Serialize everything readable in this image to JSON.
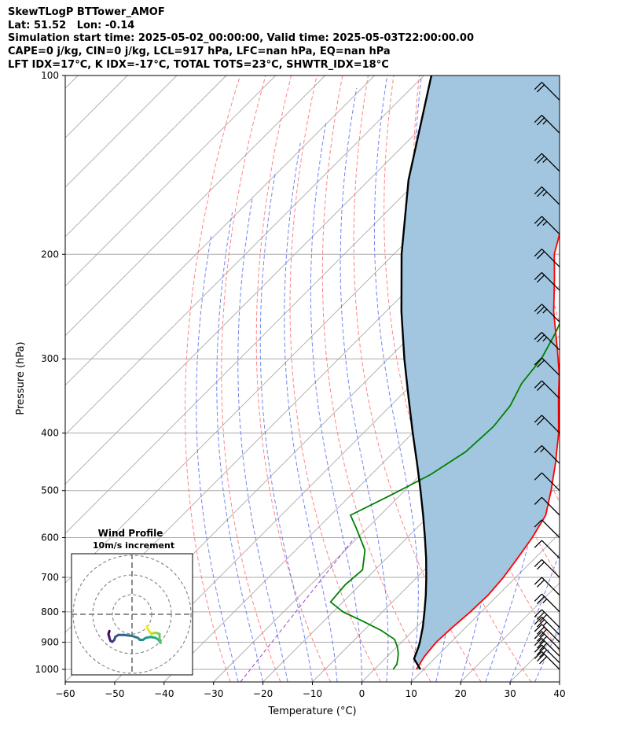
{
  "header": {
    "lines": [
      "SkewTLogP BTTower_AMOF",
      "Lat: 51.52   Lon: -0.14",
      "Simulation start time: 2025-05-02_00:00:00, Valid time: 2025-05-03T22:00:00.00",
      "CAPE=0 j/kg, CIN=0 j/kg, LCL=917 hPa, LFC=nan hPa, EQ=nan hPa",
      "LFT IDX=17°C, K IDX=-17°C, TOTAL TOTS=23°C, SHWTR_IDX=18°C"
    ]
  },
  "chart_data": {
    "type": "line",
    "xlabel": "Temperature (°C)",
    "ylabel": "Pressure (hPa)",
    "xlim": [
      -60,
      40
    ],
    "ylim": [
      1050,
      100
    ],
    "y_scale": "log",
    "skew": "45 degree skew-T",
    "x_ticks": [
      -60,
      -50,
      -40,
      -30,
      -20,
      -10,
      0,
      10,
      20,
      30,
      40
    ],
    "y_ticks": [
      1000,
      900,
      800,
      700,
      600,
      500,
      400,
      300,
      200,
      100
    ],
    "grid": true,
    "colors": {
      "temperature": "#ff0000",
      "dewpoint": "#008000",
      "parcel": "#000000",
      "cape_fill": "#a2c6e0",
      "dry_adiabats": "#ff6f6f",
      "moist_adiabats": "#5b6ff0",
      "mixing_ratio": "#9a44cc",
      "isotherms": "#aaaaaa"
    },
    "series": [
      {
        "role": "temperature",
        "points": [
          [
            1000,
            8.5
          ],
          [
            975,
            8.0
          ],
          [
            950,
            7.5
          ],
          [
            900,
            7.0
          ],
          [
            850,
            7.3
          ],
          [
            800,
            7.8
          ],
          [
            750,
            8.0
          ],
          [
            700,
            7.5
          ],
          [
            650,
            6.5
          ],
          [
            600,
            5.3
          ],
          [
            550,
            3.5
          ],
          [
            500,
            -0.4
          ],
          [
            450,
            -5.0
          ],
          [
            400,
            -10.5
          ],
          [
            350,
            -17.5
          ],
          [
            320,
            -22.0
          ],
          [
            290,
            -27.5
          ],
          [
            250,
            -36.0
          ],
          [
            220,
            -42.5
          ],
          [
            200,
            -47.5
          ],
          [
            185,
            -50.5
          ],
          [
            170,
            -51.5
          ],
          [
            150,
            -51.5
          ],
          [
            130,
            -51.8
          ],
          [
            115,
            -55.0
          ],
          [
            100,
            -58.5
          ]
        ]
      },
      {
        "role": "dewpoint",
        "points": [
          [
            1000,
            3.8
          ],
          [
            980,
            3.5
          ],
          [
            960,
            2.6
          ],
          [
            940,
            1.6
          ],
          [
            915,
            0.0
          ],
          [
            890,
            -2.0
          ],
          [
            860,
            -6.5
          ],
          [
            830,
            -12.0
          ],
          [
            800,
            -18.0
          ],
          [
            770,
            -22.5
          ],
          [
            720,
            -23.0
          ],
          [
            680,
            -22.5
          ],
          [
            630,
            -26.0
          ],
          [
            580,
            -32.0
          ],
          [
            550,
            -36.0
          ],
          [
            510,
            -32.0
          ],
          [
            470,
            -28.0
          ],
          [
            430,
            -25.5
          ],
          [
            390,
            -25.0
          ],
          [
            360,
            -25.8
          ],
          [
            330,
            -28.0
          ],
          [
            300,
            -29.0
          ],
          [
            270,
            -31.5
          ],
          [
            240,
            -35.0
          ],
          [
            200,
            -40.5
          ],
          [
            175,
            -43.5
          ],
          [
            150,
            -46.5
          ],
          [
            135,
            -53.0
          ],
          [
            120,
            -56.5
          ],
          [
            100,
            -65.0
          ]
        ]
      },
      {
        "role": "parcel",
        "points": [
          [
            1000,
            9.3
          ],
          [
            960,
            5.9
          ],
          [
            917,
            4.4
          ],
          [
            900,
            3.7
          ],
          [
            850,
            1.3
          ],
          [
            800,
            -1.5
          ],
          [
            750,
            -4.6
          ],
          [
            700,
            -8.1
          ],
          [
            650,
            -12.0
          ],
          [
            600,
            -16.4
          ],
          [
            550,
            -21.3
          ],
          [
            500,
            -26.8
          ],
          [
            450,
            -33.0
          ],
          [
            400,
            -40.0
          ],
          [
            350,
            -47.8
          ],
          [
            300,
            -56.7
          ],
          [
            250,
            -66.8
          ],
          [
            200,
            -78.4
          ],
          [
            150,
            -92.0
          ],
          [
            100,
            -108.5
          ]
        ]
      }
    ],
    "wind_barbs": {
      "units": "knots",
      "barbs": [
        [
          1000,
          30
        ],
        [
          975,
          30
        ],
        [
          950,
          30
        ],
        [
          925,
          30
        ],
        [
          900,
          30
        ],
        [
          875,
          25
        ],
        [
          850,
          30
        ],
        [
          800,
          25
        ],
        [
          750,
          20
        ],
        [
          700,
          20
        ],
        [
          650,
          10
        ],
        [
          600,
          10
        ],
        [
          550,
          10
        ],
        [
          500,
          10
        ],
        [
          450,
          15
        ],
        [
          400,
          20
        ],
        [
          350,
          20
        ],
        [
          320,
          20
        ],
        [
          290,
          25
        ],
        [
          260,
          25
        ],
        [
          230,
          20
        ],
        [
          210,
          20
        ],
        [
          185,
          25
        ],
        [
          165,
          25
        ],
        [
          145,
          25
        ],
        [
          125,
          25
        ],
        [
          110,
          20
        ]
      ]
    },
    "hodograph": {
      "title": "Wind Profile",
      "subtitle": "10m/s increment",
      "rings_ms": [
        10,
        20,
        30
      ],
      "colormap": "viridis",
      "points_uv": [
        [
          -11.5,
          -8.5
        ],
        [
          -12,
          -10
        ],
        [
          -11.5,
          -12
        ],
        [
          -11,
          -13.5
        ],
        [
          -10,
          -14
        ],
        [
          -9,
          -13
        ],
        [
          -8.5,
          -11.5
        ],
        [
          -7,
          -10.5
        ],
        [
          -4,
          -10.5
        ],
        [
          0,
          -11
        ],
        [
          3,
          -12
        ],
        [
          4,
          -13
        ],
        [
          5.5,
          -13
        ],
        [
          7,
          -12
        ],
        [
          9.5,
          -11.5
        ],
        [
          12,
          -12
        ],
        [
          13.5,
          -13
        ],
        [
          14.5,
          -14.5
        ],
        [
          14,
          -12.5
        ],
        [
          14,
          -10
        ],
        [
          12.5,
          -9.5
        ],
        [
          11,
          -9.5
        ],
        [
          10,
          -10
        ],
        [
          9,
          -9
        ],
        [
          8,
          -7.5
        ],
        [
          7.5,
          -6
        ]
      ]
    }
  }
}
